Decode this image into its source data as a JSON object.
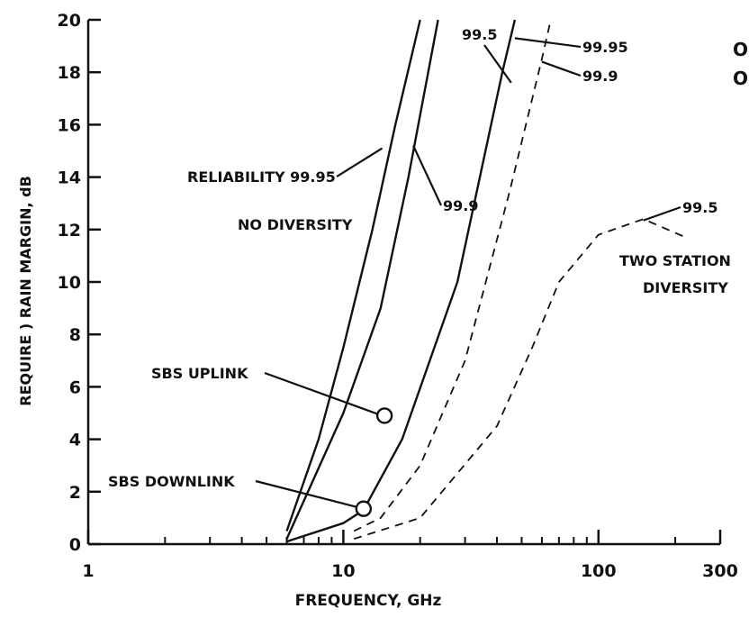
{
  "chart_data": {
    "type": "line",
    "xlabel": "FREQUENCY, GHz",
    "ylabel": "REQUIRE ) RAIN MARGIN, dB",
    "x_scale": "log",
    "xlim": [
      1,
      300
    ],
    "ylim": [
      0,
      20
    ],
    "x_ticks": [
      1,
      10,
      100,
      300
    ],
    "x_tick_labels": [
      "1",
      "10",
      "100",
      "300"
    ],
    "y_ticks": [
      0,
      2,
      4,
      6,
      8,
      10,
      12,
      14,
      16,
      18,
      20
    ],
    "y_tick_labels": [
      "0",
      "2",
      "4",
      "6",
      "8",
      "10",
      "12",
      "14",
      "16",
      "18",
      "20"
    ],
    "grid": false,
    "legend": "none",
    "series": [
      {
        "name": "99.95",
        "group": "NO DIVERSITY",
        "style": "solid",
        "x": [
          6.0,
          8.0,
          10.0,
          13.0,
          16.0,
          20.0
        ],
        "y": [
          0.5,
          4.0,
          7.5,
          12.0,
          16.0,
          20.0
        ]
      },
      {
        "name": "99.9",
        "group": "NO DIVERSITY",
        "style": "solid",
        "x": [
          6.0,
          10.0,
          14.0,
          18.0,
          22.0,
          23.5
        ],
        "y": [
          0.2,
          5.0,
          9.0,
          14.0,
          18.5,
          20.0
        ]
      },
      {
        "name": "99.5",
        "group": "NO DIVERSITY",
        "style": "solid",
        "x": [
          6.0,
          10.0,
          12.0,
          17.0,
          28.0,
          42.0,
          47.0
        ],
        "y": [
          0.1,
          0.8,
          1.3,
          4.0,
          10.0,
          18.0,
          20.0
        ]
      },
      {
        "name": "99.9",
        "group": "TWO STATION DIVERSITY",
        "style": "dashed",
        "x": [
          11.0,
          14.0,
          20.0,
          30.0,
          45.0,
          60.0,
          65.0
        ],
        "y": [
          0.5,
          1.0,
          3.0,
          7.0,
          13.5,
          18.5,
          20.0
        ]
      },
      {
        "name": "99.5",
        "group": "TWO STATION DIVERSITY",
        "style": "dashed",
        "x": [
          11.0,
          20.0,
          40.0,
          55.0,
          70.0,
          100.0,
          150.0,
          220.0
        ],
        "y": [
          0.2,
          1.0,
          4.5,
          7.5,
          10.0,
          11.8,
          12.4,
          11.7
        ]
      }
    ],
    "points": [
      {
        "label": "SBS UPLINK",
        "x": 14.5,
        "y": 4.9
      },
      {
        "label": "SBS DOWNLINK",
        "x": 12.0,
        "y": 1.35
      }
    ],
    "annotations": [
      "RELIABILITY 99.95",
      "99.9",
      "NO DIVERSITY",
      "99.5",
      "99.95",
      "99.9",
      "99.5",
      "TWO STATION",
      "DIVERSITY",
      "SBS UPLINK",
      "SBS DOWNLINK"
    ],
    "edge_text": [
      "O",
      "O"
    ]
  }
}
